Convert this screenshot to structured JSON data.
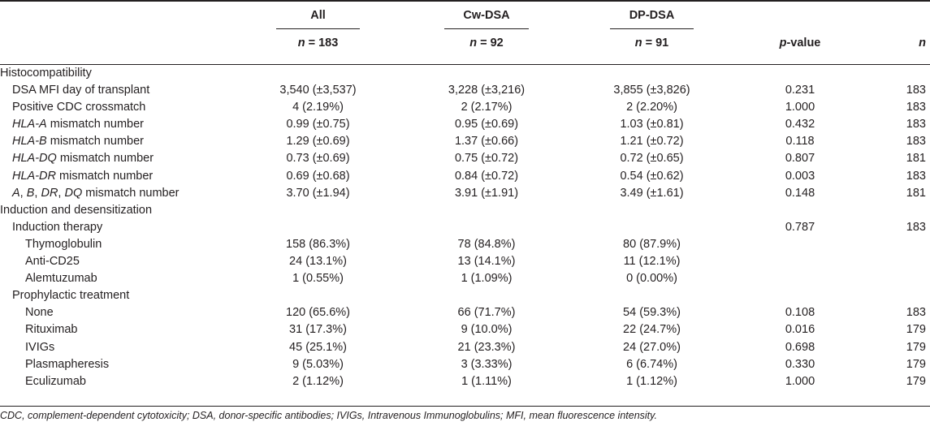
{
  "header": {
    "col_all": "All",
    "col_cw": "Cw-DSA",
    "col_dp": "DP-DSA",
    "n_all": "= 183",
    "n_cw": "= 92",
    "n_dp": "= 91",
    "n_symbol": "n",
    "pvalue_italic": "p",
    "pvalue_rest": "-value",
    "n_col": "n"
  },
  "rows": [
    {
      "level": 0,
      "label": "Histocompatibility",
      "all": "",
      "cw": "",
      "dp": "",
      "p": "",
      "n": ""
    },
    {
      "level": 1,
      "label": "DSA MFI day of transplant",
      "all": "3,540 (±3,537)",
      "cw": "3,228 (±3,216)",
      "dp": "3,855 (±3,826)",
      "p": "0.231",
      "n": "183"
    },
    {
      "level": 1,
      "label": "Positive CDC crossmatch",
      "all": "4 (2.19%)",
      "cw": "2 (2.17%)",
      "dp": "2 (2.20%)",
      "p": "1.000",
      "n": "183"
    },
    {
      "level": 1,
      "label_italic": "HLA-A",
      "label": " mismatch number",
      "all": "0.99 (±0.75)",
      "cw": "0.95 (±0.69)",
      "dp": "1.03 (±0.81)",
      "p": "0.432",
      "n": "183"
    },
    {
      "level": 1,
      "label_italic": "HLA-B",
      "label": " mismatch number",
      "all": "1.29 (±0.69)",
      "cw": "1.37 (±0.66)",
      "dp": "1.21 (±0.72)",
      "p": "0.118",
      "n": "183"
    },
    {
      "level": 1,
      "label_italic": "HLA-DQ",
      "label": " mismatch number",
      "all": "0.73 (±0.69)",
      "cw": "0.75 (±0.72)",
      "dp": "0.72 (±0.65)",
      "p": "0.807",
      "n": "181"
    },
    {
      "level": 1,
      "label_italic": "HLA-DR",
      "label": " mismatch number",
      "all": "0.69 (±0.68)",
      "cw": "0.84 (±0.72)",
      "dp": "0.54 (±0.62)",
      "p": "0.003",
      "n": "183"
    },
    {
      "level": 1,
      "label_italic": "A",
      "label": ", ",
      "label_italic2": "B",
      "label2": ", ",
      "label_italic3": "DR",
      "label3": ", ",
      "label_italic4": "DQ",
      "label4": " mismatch number",
      "all": "3.70 (±1.94)",
      "cw": "3.91 (±1.91)",
      "dp": "3.49 (±1.61)",
      "p": "0.148",
      "n": "181"
    },
    {
      "level": 0,
      "label": "Induction and desensitization",
      "all": "",
      "cw": "",
      "dp": "",
      "p": "",
      "n": ""
    },
    {
      "level": 1,
      "label": "Induction therapy",
      "all": "",
      "cw": "",
      "dp": "",
      "p": "0.787",
      "n": "183"
    },
    {
      "level": 2,
      "label": "Thymoglobulin",
      "all": "158 (86.3%)",
      "cw": "78 (84.8%)",
      "dp": "80 (87.9%)",
      "p": "",
      "n": ""
    },
    {
      "level": 2,
      "label": "Anti-CD25",
      "all": "24 (13.1%)",
      "cw": "13 (14.1%)",
      "dp": "11 (12.1%)",
      "p": "",
      "n": ""
    },
    {
      "level": 2,
      "label": "Alemtuzumab",
      "all": "1 (0.55%)",
      "cw": "1 (1.09%)",
      "dp": "0 (0.00%)",
      "p": "",
      "n": ""
    },
    {
      "level": 1,
      "label": "Prophylactic treatment",
      "all": "",
      "cw": "",
      "dp": "",
      "p": "",
      "n": ""
    },
    {
      "level": 2,
      "label": "None",
      "all": "120 (65.6%)",
      "cw": "66 (71.7%)",
      "dp": "54 (59.3%)",
      "p": "0.108",
      "n": "183"
    },
    {
      "level": 2,
      "label": "Rituximab",
      "all": "31 (17.3%)",
      "cw": "9 (10.0%)",
      "dp": "22 (24.7%)",
      "p": "0.016",
      "n": "179"
    },
    {
      "level": 2,
      "label": "IVIGs",
      "all": "45 (25.1%)",
      "cw": "21 (23.3%)",
      "dp": "24 (27.0%)",
      "p": "0.698",
      "n": "179"
    },
    {
      "level": 2,
      "label": "Plasmapheresis",
      "all": "9 (5.03%)",
      "cw": "3 (3.33%)",
      "dp": "6 (6.74%)",
      "p": "0.330",
      "n": "179"
    },
    {
      "level": 2,
      "label": "Eculizumab",
      "all": "2 (1.12%)",
      "cw": "1 (1.11%)",
      "dp": "1 (1.12%)",
      "p": "1.000",
      "n": "179"
    }
  ],
  "footnote": "CDC, complement-dependent cytotoxicity; DSA, donor-specific antibodies; IVIGs, Intravenous Immunoglobulins; MFI, mean fluorescence intensity."
}
